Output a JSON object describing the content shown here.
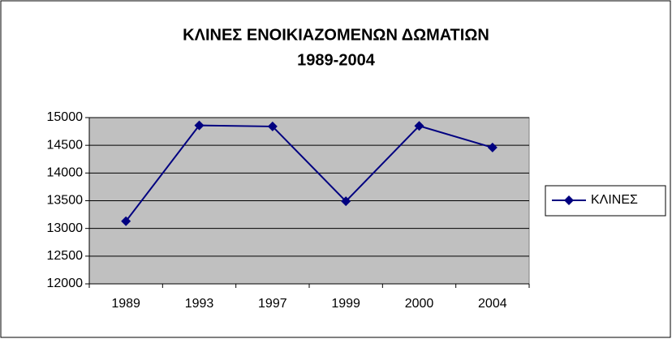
{
  "chart_data": {
    "type": "line",
    "title": [
      "ΚΛΙΝΕΣ ΕΝΟΙΚΙΑΖΟΜΕΝΩΝ ΔΩΜΑΤΙΩΝ",
      "1989-2004"
    ],
    "categories": [
      "1989",
      "1993",
      "1997",
      "1999",
      "2000",
      "2004"
    ],
    "series": [
      {
        "name": "ΚΛΙΝΕΣ",
        "color": "#000080",
        "values": [
          13130,
          14860,
          14840,
          13490,
          14850,
          14460
        ]
      }
    ],
    "ylim": [
      12000,
      15000
    ],
    "yticks": [
      12000,
      12500,
      13000,
      13500,
      14000,
      14500,
      15000
    ],
    "grid": true,
    "legend": "right",
    "plot_background": "#c0c0c0"
  }
}
